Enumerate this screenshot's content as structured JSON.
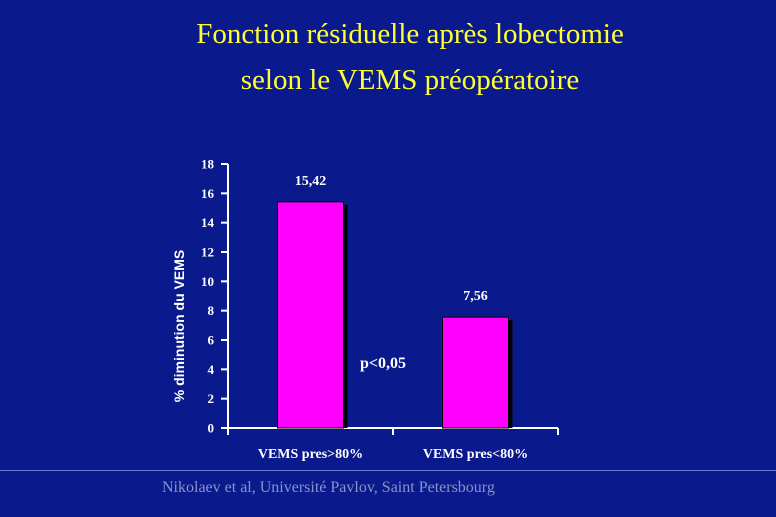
{
  "slide": {
    "title_line1": "Fonction résiduelle après lobectomie",
    "title_line2": "selon le VEMS préopératoire",
    "footer": "Nikolaev et al, Université Pavlov, Saint Petersbourg",
    "colors": {
      "background": "#0a1a8c",
      "title": "#ffff33",
      "bars": "#ff00ff"
    }
  },
  "chart_data": {
    "type": "bar",
    "title": "",
    "xlabel": "",
    "ylabel": "% diminution du VEMS",
    "categories": [
      "VEMS pres>80%",
      "VEMS pres<80%"
    ],
    "values": [
      15.42,
      7.56
    ],
    "data_labels": [
      "15,42",
      "7,56"
    ],
    "ylim": [
      0,
      18
    ],
    "yticks": [
      0,
      2,
      4,
      6,
      8,
      10,
      12,
      14,
      16,
      18
    ],
    "annotation": "p<0,05",
    "grid": false,
    "legend": "none"
  }
}
